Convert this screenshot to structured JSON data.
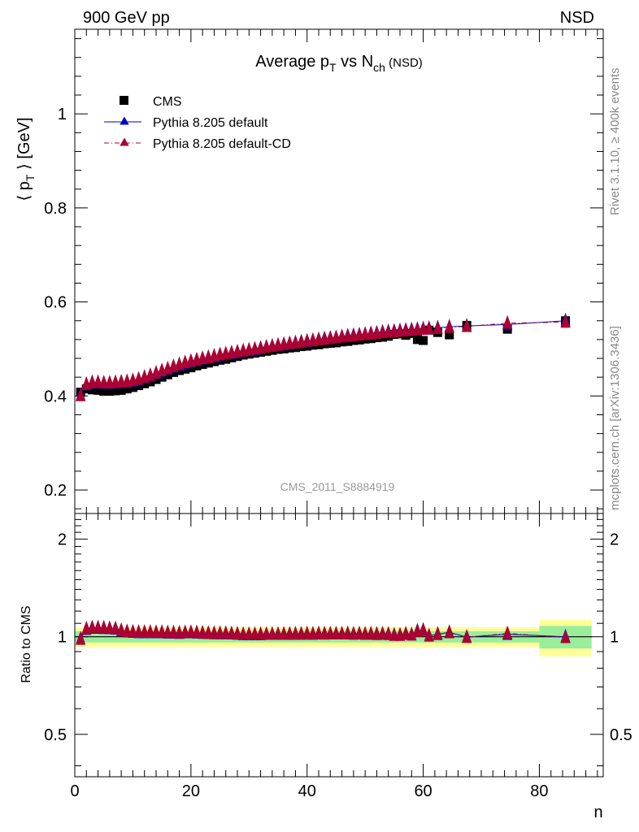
{
  "header": {
    "left_label": "900 GeV pp",
    "right_label": "NSD"
  },
  "side_labels": {
    "rivet": "Rivet 3.1.10, ≥ 400k events",
    "mcplots": "mcplots.cern.ch [arXiv:1306.3436]"
  },
  "chart_data": [
    {
      "type": "scatter",
      "title_parts": {
        "pre": "Average p",
        "sub1": "T",
        "mid": " vs N",
        "sub2": "ch",
        "post": " (NSD)"
      },
      "ylabel_parts": {
        "pre": "⟨ p",
        "sub": "T",
        "post": " ⟩ [GeV]"
      },
      "watermark": "CMS_2011_S8884919",
      "xlim": [
        0,
        91
      ],
      "ylim": [
        0.15,
        1.18
      ],
      "yticks": [
        "0.2",
        "0.4",
        "0.6",
        "0.8",
        "1"
      ],
      "ytick_values": [
        0.2,
        0.4,
        0.6,
        0.8,
        1.0
      ],
      "legend_position": "top-left",
      "series": [
        {
          "name": "CMS",
          "color": "#000000",
          "marker": "square",
          "x": [
            1,
            2,
            3,
            4,
            5,
            6,
            7,
            8,
            9,
            10,
            11,
            12,
            13,
            14,
            15,
            16,
            17,
            18,
            19,
            20,
            21,
            22,
            23,
            24,
            25,
            26,
            27,
            28,
            29,
            30,
            31,
            32,
            33,
            34,
            35,
            36,
            37,
            38,
            39,
            40,
            41,
            42,
            43,
            44,
            45,
            46,
            47,
            48,
            49,
            50,
            51,
            52,
            53,
            54,
            55,
            56,
            57,
            58,
            59,
            60,
            61,
            62.5,
            64.5,
            67.5,
            74.5,
            84.5
          ],
          "values": [
            0.408,
            0.415,
            0.413,
            0.412,
            0.41,
            0.41,
            0.411,
            0.412,
            0.415,
            0.418,
            0.422,
            0.426,
            0.43,
            0.435,
            0.44,
            0.445,
            0.45,
            0.454,
            0.457,
            0.46,
            0.464,
            0.467,
            0.47,
            0.473,
            0.476,
            0.478,
            0.481,
            0.484,
            0.487,
            0.489,
            0.491,
            0.493,
            0.495,
            0.497,
            0.499,
            0.5,
            0.502,
            0.503,
            0.505,
            0.506,
            0.508,
            0.509,
            0.511,
            0.512,
            0.513,
            0.515,
            0.516,
            0.518,
            0.519,
            0.521,
            0.522,
            0.524,
            0.525,
            0.527,
            0.531,
            0.532,
            0.529,
            0.533,
            0.52,
            0.518,
            0.54,
            0.535,
            0.53,
            0.55,
            0.542,
            0.56
          ]
        },
        {
          "name": "Pythia 8.205 default",
          "color": "#0000cc",
          "marker": "triangle",
          "linestyle": "solid",
          "x": [
            1,
            2,
            3,
            4,
            5,
            6,
            7,
            8,
            9,
            10,
            11,
            12,
            13,
            14,
            15,
            16,
            17,
            18,
            19,
            20,
            21,
            22,
            23,
            24,
            25,
            26,
            27,
            28,
            29,
            30,
            31,
            32,
            33,
            34,
            35,
            36,
            37,
            38,
            39,
            40,
            41,
            42,
            43,
            44,
            45,
            46,
            47,
            48,
            49,
            50,
            51,
            52,
            53,
            54,
            55,
            56,
            57,
            58,
            59,
            60,
            61,
            62.5,
            64.5,
            67.5,
            74.5,
            84.5
          ],
          "values": [
            0.402,
            0.424,
            0.428,
            0.428,
            0.427,
            0.427,
            0.428,
            0.429,
            0.43,
            0.432,
            0.435,
            0.439,
            0.443,
            0.448,
            0.453,
            0.457,
            0.462,
            0.466,
            0.47,
            0.473,
            0.476,
            0.479,
            0.482,
            0.484,
            0.487,
            0.489,
            0.491,
            0.493,
            0.495,
            0.497,
            0.499,
            0.501,
            0.504,
            0.506,
            0.508,
            0.509,
            0.511,
            0.513,
            0.515,
            0.516,
            0.518,
            0.52,
            0.522,
            0.523,
            0.524,
            0.526,
            0.528,
            0.529,
            0.53,
            0.531,
            0.533,
            0.534,
            0.536,
            0.537,
            0.538,
            0.539,
            0.54,
            0.541,
            0.542,
            0.543,
            0.544,
            0.545,
            0.547,
            0.549,
            0.552,
            0.56
          ]
        },
        {
          "name": "Pythia 8.205 default-CD",
          "color": "#aa0033",
          "marker": "triangle",
          "linestyle": "dashdot",
          "x": [
            1,
            2,
            3,
            4,
            5,
            6,
            7,
            8,
            9,
            10,
            11,
            12,
            13,
            14,
            15,
            16,
            17,
            18,
            19,
            20,
            21,
            22,
            23,
            24,
            25,
            26,
            27,
            28,
            29,
            30,
            31,
            32,
            33,
            34,
            35,
            36,
            37,
            38,
            39,
            40,
            41,
            42,
            43,
            44,
            45,
            46,
            47,
            48,
            49,
            50,
            51,
            52,
            53,
            54,
            55,
            56,
            57,
            58,
            59,
            60,
            61,
            62.5,
            64.5,
            67.5,
            74.5,
            84.5
          ],
          "values": [
            0.401,
            0.425,
            0.429,
            0.429,
            0.428,
            0.428,
            0.429,
            0.43,
            0.431,
            0.433,
            0.436,
            0.44,
            0.444,
            0.449,
            0.454,
            0.458,
            0.463,
            0.467,
            0.471,
            0.474,
            0.477,
            0.48,
            0.482,
            0.485,
            0.488,
            0.49,
            0.492,
            0.494,
            0.496,
            0.498,
            0.5,
            0.502,
            0.504,
            0.506,
            0.508,
            0.51,
            0.512,
            0.513,
            0.515,
            0.517,
            0.518,
            0.52,
            0.521,
            0.523,
            0.524,
            0.526,
            0.527,
            0.528,
            0.53,
            0.531,
            0.532,
            0.533,
            0.535,
            0.536,
            0.537,
            0.538,
            0.539,
            0.54,
            0.541,
            0.542,
            0.543,
            0.544,
            0.546,
            0.548,
            0.555,
            0.557
          ]
        }
      ]
    },
    {
      "type": "scatter",
      "ylabel": "Ratio to CMS",
      "xlabel": "n",
      "xlim": [
        0,
        91
      ],
      "xticks": [
        "0",
        "20",
        "40",
        "60",
        "80"
      ],
      "xtick_values": [
        0,
        20,
        40,
        60,
        80
      ],
      "ylim": [
        0.37,
        2.4
      ],
      "yticks": [
        "0.5",
        "1",
        "2"
      ],
      "ytick_values": [
        0.5,
        1,
        2
      ],
      "bands": [
        {
          "x0": 0,
          "x1": 80,
          "inner": 0.04,
          "outer": 0.07
        },
        {
          "x0": 80,
          "x1": 89,
          "inner": 0.08,
          "outer": 0.13
        }
      ],
      "band_colors": {
        "inner": "#99ee99",
        "outer": "#ffff99"
      },
      "series": [
        {
          "name": "Pythia 8.205 default",
          "color": "#0000cc",
          "x": [
            1,
            2,
            3,
            4,
            5,
            6,
            7,
            8,
            9,
            10,
            11,
            12,
            13,
            14,
            15,
            16,
            17,
            18,
            19,
            20,
            21,
            22,
            23,
            24,
            25,
            26,
            27,
            28,
            29,
            30,
            31,
            32,
            33,
            34,
            35,
            36,
            37,
            38,
            39,
            40,
            41,
            42,
            43,
            44,
            45,
            46,
            47,
            48,
            49,
            50,
            51,
            52,
            53,
            54,
            55,
            56,
            57,
            58,
            59,
            60,
            61,
            62.5,
            64.5,
            67.5,
            74.5,
            84.5
          ],
          "values": [
            0.985,
            1.055,
            1.063,
            1.063,
            1.062,
            1.06,
            1.057,
            1.044,
            1.036,
            1.033,
            1.031,
            1.031,
            1.031,
            1.03,
            1.03,
            1.028,
            1.027,
            1.026,
            1.029,
            1.03,
            1.028,
            1.026,
            1.026,
            1.023,
            1.023,
            1.023,
            1.021,
            1.019,
            1.016,
            1.016,
            1.016,
            1.016,
            1.018,
            1.018,
            1.018,
            1.018,
            1.018,
            1.02,
            1.02,
            1.02,
            1.02,
            1.022,
            1.022,
            1.021,
            1.021,
            1.021,
            1.023,
            1.021,
            1.021,
            1.019,
            1.021,
            1.019,
            1.021,
            1.019,
            1.013,
            1.013,
            1.021,
            1.015,
            1.042,
            1.048,
            1.007,
            1.019,
            1.032,
            0.998,
            1.018,
            1.0
          ]
        },
        {
          "name": "Pythia 8.205 default-CD",
          "color": "#aa0033",
          "x": [
            1,
            2,
            3,
            4,
            5,
            6,
            7,
            8,
            9,
            10,
            11,
            12,
            13,
            14,
            15,
            16,
            17,
            18,
            19,
            20,
            21,
            22,
            23,
            24,
            25,
            26,
            27,
            28,
            29,
            30,
            31,
            32,
            33,
            34,
            35,
            36,
            37,
            38,
            39,
            40,
            41,
            42,
            43,
            44,
            45,
            46,
            47,
            48,
            49,
            50,
            51,
            52,
            53,
            54,
            55,
            56,
            57,
            58,
            59,
            60,
            61,
            62.5,
            64.5,
            67.5,
            74.5,
            84.5
          ],
          "values": [
            0.983,
            1.059,
            1.067,
            1.067,
            1.066,
            1.062,
            1.06,
            1.046,
            1.038,
            1.035,
            1.033,
            1.033,
            1.033,
            1.032,
            1.032,
            1.03,
            1.029,
            1.028,
            1.031,
            1.032,
            1.03,
            1.028,
            1.025,
            1.025,
            1.025,
            1.025,
            1.023,
            1.021,
            1.018,
            1.018,
            1.018,
            1.018,
            1.018,
            1.018,
            1.018,
            1.02,
            1.02,
            1.02,
            1.02,
            1.022,
            1.02,
            1.022,
            1.02,
            1.021,
            1.021,
            1.021,
            1.021,
            1.019,
            1.021,
            1.019,
            1.019,
            1.017,
            1.019,
            1.017,
            1.011,
            1.011,
            1.019,
            1.013,
            1.04,
            1.046,
            1.006,
            1.017,
            1.03,
            0.996,
            1.024,
            0.995
          ]
        }
      ]
    }
  ]
}
